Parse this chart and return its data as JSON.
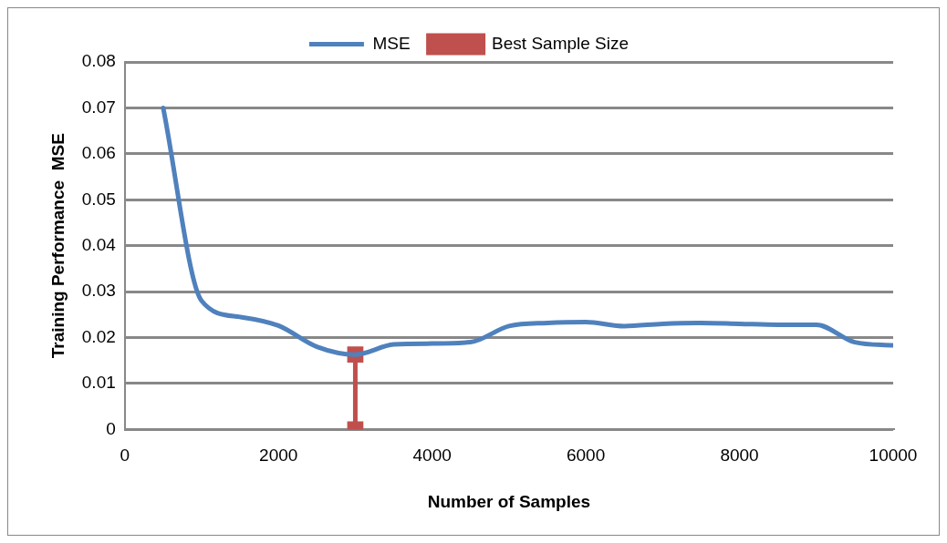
{
  "chart_data": {
    "type": "line",
    "xlabel": "Number of Samples",
    "ylabel": "Training Performance  MSE",
    "xlim": [
      0,
      10000
    ],
    "xticks": [
      0,
      2000,
      4000,
      6000,
      8000,
      10000
    ],
    "ylim": [
      0,
      0.08
    ],
    "yticks": [
      0,
      0.01,
      0.02,
      0.03,
      0.04,
      0.05,
      0.06,
      0.07,
      0.08
    ],
    "grid": "y",
    "legend": "top",
    "line_style": "solid",
    "series": [
      {
        "name": "MSE",
        "color": "#4f81bd",
        "marker": "none",
        "x": [
          500,
          1000,
          1500,
          2000,
          2500,
          3000,
          3500,
          4000,
          4500,
          5000,
          5500,
          6000,
          6500,
          7000,
          7500,
          8000,
          8500,
          9000,
          9500,
          10000
        ],
        "values": [
          0.07,
          0.028,
          0.0245,
          0.0226,
          0.018,
          0.0163,
          0.0185,
          0.0187,
          0.019,
          0.0225,
          0.0232,
          0.0234,
          0.0225,
          0.023,
          0.0232,
          0.023,
          0.0228,
          0.0228,
          0.019,
          0.0183
        ]
      },
      {
        "name": "Best Sample Size",
        "color": "#c0504d",
        "marker": "square",
        "x": [
          3000,
          3000
        ],
        "values": [
          0,
          0.0163
        ]
      }
    ]
  }
}
